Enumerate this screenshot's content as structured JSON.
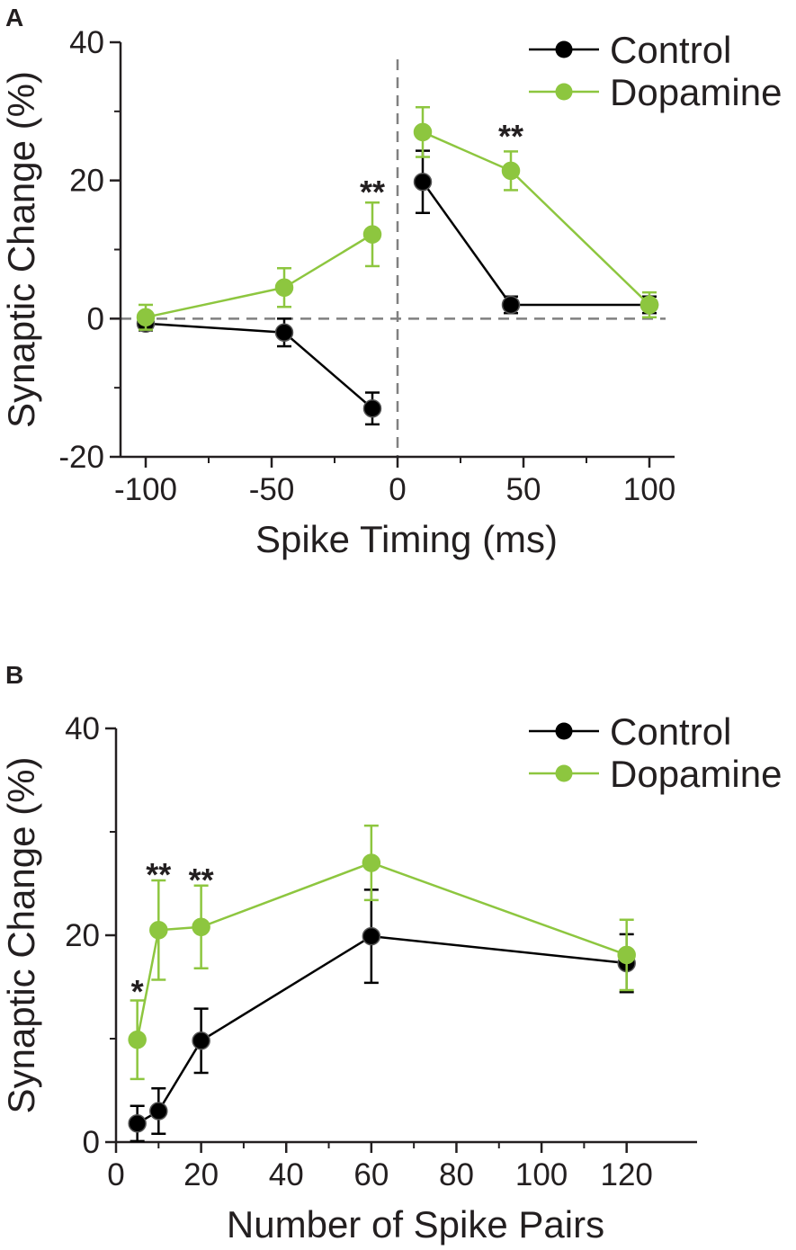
{
  "colors": {
    "control": "#000000",
    "dopamine": "#8dc63f",
    "axis": "#231f20",
    "reference_line": "#808080"
  },
  "chart_data": [
    {
      "type": "line",
      "panel_label": "A",
      "xlabel": "Spike Timing (ms)",
      "ylabel": "Synaptic Change (%)",
      "xlim": [
        -110,
        110
      ],
      "ylim": [
        -20,
        40
      ],
      "xticks": [
        -100,
        -50,
        0,
        50,
        100
      ],
      "xtick_labels": [
        "-100",
        "-50",
        "0",
        "50",
        "100"
      ],
      "yticks": [
        -20,
        0,
        20,
        40
      ],
      "ytick_labels": [
        "-20",
        "0",
        "20",
        "40"
      ],
      "grid": false,
      "reference_lines": {
        "y": 0,
        "x": 0,
        "style": "dashed"
      },
      "legend_position": "top-right",
      "series": [
        {
          "name": "Control",
          "color": "#000000",
          "segments": [
            {
              "x": [
                -100,
                -45,
                -10
              ],
              "y": [
                -0.7,
                -2.0,
                -13.0
              ],
              "err": [
                1.0,
                2.0,
                2.3
              ]
            },
            {
              "x": [
                10,
                45,
                100
              ],
              "y": [
                19.8,
                2.0,
                2.0
              ],
              "err": [
                4.5,
                1.2,
                1.2
              ]
            }
          ]
        },
        {
          "name": "Dopamine",
          "color": "#8dc63f",
          "segments": [
            {
              "x": [
                -100,
                -45,
                -10
              ],
              "y": [
                0.2,
                4.5,
                12.2
              ],
              "err": [
                1.8,
                2.8,
                4.6
              ]
            },
            {
              "x": [
                10,
                45,
                100
              ],
              "y": [
                27.0,
                21.4,
                2.0
              ],
              "err": [
                3.6,
                2.8,
                1.8
              ]
            }
          ]
        }
      ],
      "annotations": [
        {
          "text": "**",
          "x": -10,
          "y": 18.5
        },
        {
          "text": "**",
          "x": 45,
          "y": 26.6
        }
      ]
    },
    {
      "type": "line",
      "panel_label": "B",
      "xlabel": "Number of Spike Pairs",
      "ylabel": "Synaptic Change (%)",
      "xlim": [
        0,
        130
      ],
      "ylim": [
        0,
        40
      ],
      "xticks": [
        0,
        20,
        40,
        60,
        80,
        100,
        120
      ],
      "xtick_labels": [
        "0",
        "20",
        "40",
        "60",
        "80",
        "100",
        "120"
      ],
      "yticks": [
        0,
        20,
        40
      ],
      "ytick_labels": [
        "0",
        "20",
        "40"
      ],
      "grid": false,
      "legend_position": "top-right",
      "series": [
        {
          "name": "Control",
          "color": "#000000",
          "segments": [
            {
              "x": [
                5,
                10,
                20,
                60,
                120
              ],
              "y": [
                1.8,
                3.0,
                9.8,
                19.9,
                17.3
              ],
              "err": [
                1.7,
                2.2,
                3.1,
                4.5,
                2.8
              ]
            }
          ]
        },
        {
          "name": "Dopamine",
          "color": "#8dc63f",
          "segments": [
            {
              "x": [
                5,
                10,
                20,
                60,
                120
              ],
              "y": [
                9.9,
                20.5,
                20.8,
                27.0,
                18.1
              ],
              "err": [
                3.8,
                4.8,
                4.0,
                3.6,
                3.4
              ]
            }
          ]
        }
      ],
      "annotations": [
        {
          "text": "*",
          "x": 5,
          "y": 14.7
        },
        {
          "text": "**",
          "x": 10,
          "y": 26.0
        },
        {
          "text": "**",
          "x": 20,
          "y": 25.5
        }
      ]
    }
  ]
}
